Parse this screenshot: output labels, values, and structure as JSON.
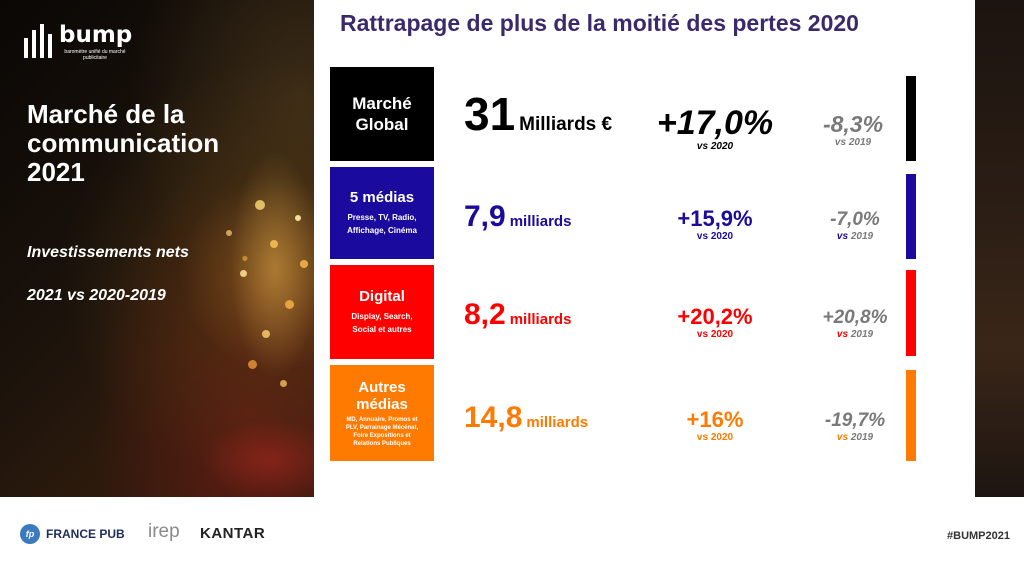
{
  "brand": {
    "logo_word": "bump",
    "logo_sub": "baromètre unifié du marché publicitaire"
  },
  "left": {
    "title_lines": [
      "Marché de la",
      "communication",
      "2021"
    ],
    "subtitle1": "Investissements nets",
    "subtitle2": "2021 vs 2020-2019"
  },
  "main": {
    "title": "Rattrapage de plus de la moitié des pertes 2020",
    "rows": [
      {
        "label_main": [
          "Marché",
          "Global"
        ],
        "label_detail": [],
        "value": "31",
        "unit": "Milliards €",
        "delta": "+17,0%",
        "delta_vs": "vs 2020",
        "prev": "-8,3%",
        "prev_vs": "vs 2019",
        "color": "#000000"
      },
      {
        "label_main": [
          "5 médias"
        ],
        "label_detail": [
          "Presse, TV, Radio,",
          "Affichage, Cinéma"
        ],
        "value": "7,9",
        "unit": "milliards",
        "delta": "+15,9%",
        "delta_vs": "vs 2020",
        "prev": "-7,0%",
        "prev_vs": "vs 2019",
        "color": "#1a0a9e"
      },
      {
        "label_main": [
          "Digital"
        ],
        "label_detail": [
          "Display, Search,",
          "Social et autres"
        ],
        "value": "8,2",
        "unit": "milliards",
        "delta": "+20,2%",
        "delta_vs": "vs 2020",
        "prev": "+20,8%",
        "prev_vs": "vs 2019",
        "color": "#ff0000"
      },
      {
        "label_main": [
          "Autres",
          "médias"
        ],
        "label_detail": [
          "MD, Annuaire, Promos et",
          "PLV, Parrainage Mécénat,",
          "Foire Expositions et",
          "Relations Publiques"
        ],
        "value": "14,8",
        "unit": "milliards",
        "delta": "+16%",
        "delta_vs": "vs 2020",
        "prev": "-19,7%",
        "prev_vs": "vs 2019",
        "color": "#ff7a00"
      }
    ]
  },
  "footer": {
    "francepub_mark": "fp",
    "francepub": "FRANCE PUB",
    "irep": "irep",
    "kantar": "KANTAR",
    "hashtag": "#BUMP2021"
  }
}
